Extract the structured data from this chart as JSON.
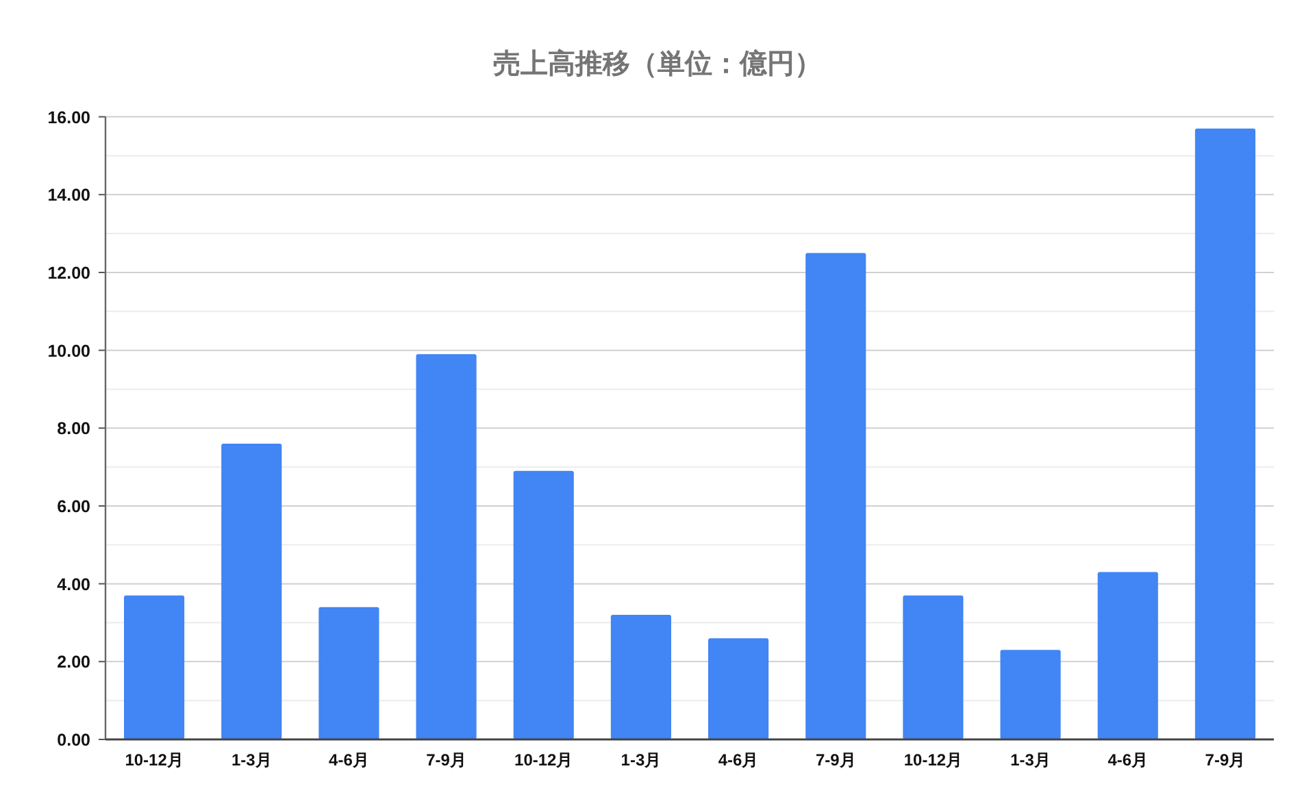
{
  "chart_data": {
    "type": "bar",
    "title": "売上高推移（単位：億円）",
    "categories": [
      "10-12月",
      "1-3月",
      "4-6月",
      "7-9月",
      "10-12月",
      "1-3月",
      "4-6月",
      "7-9月",
      "10-12月",
      "1-3月",
      "4-6月",
      "7-9月"
    ],
    "values": [
      3.7,
      7.6,
      3.4,
      9.9,
      6.9,
      3.2,
      2.6,
      12.5,
      3.7,
      2.3,
      4.3,
      15.7
    ],
    "color": "#4285f4",
    "ylim": [
      0,
      16
    ],
    "yticks": [
      {
        "value": 0,
        "label": "0.00"
      },
      {
        "value": 1,
        "label": null
      },
      {
        "value": 2,
        "label": "2.00"
      },
      {
        "value": 3,
        "label": null
      },
      {
        "value": 4,
        "label": "4.00"
      },
      {
        "value": 5,
        "label": null
      },
      {
        "value": 6,
        "label": "6.00"
      },
      {
        "value": 7,
        "label": null
      },
      {
        "value": 8,
        "label": "8.00"
      },
      {
        "value": 9,
        "label": null
      },
      {
        "value": 10,
        "label": "10.00"
      },
      {
        "value": 11,
        "label": null
      },
      {
        "value": 12,
        "label": "12.00"
      },
      {
        "value": 13,
        "label": null
      },
      {
        "value": 14,
        "label": "14.00"
      },
      {
        "value": 15,
        "label": null
      },
      {
        "value": 16,
        "label": "16.00"
      }
    ],
    "grid": true
  }
}
